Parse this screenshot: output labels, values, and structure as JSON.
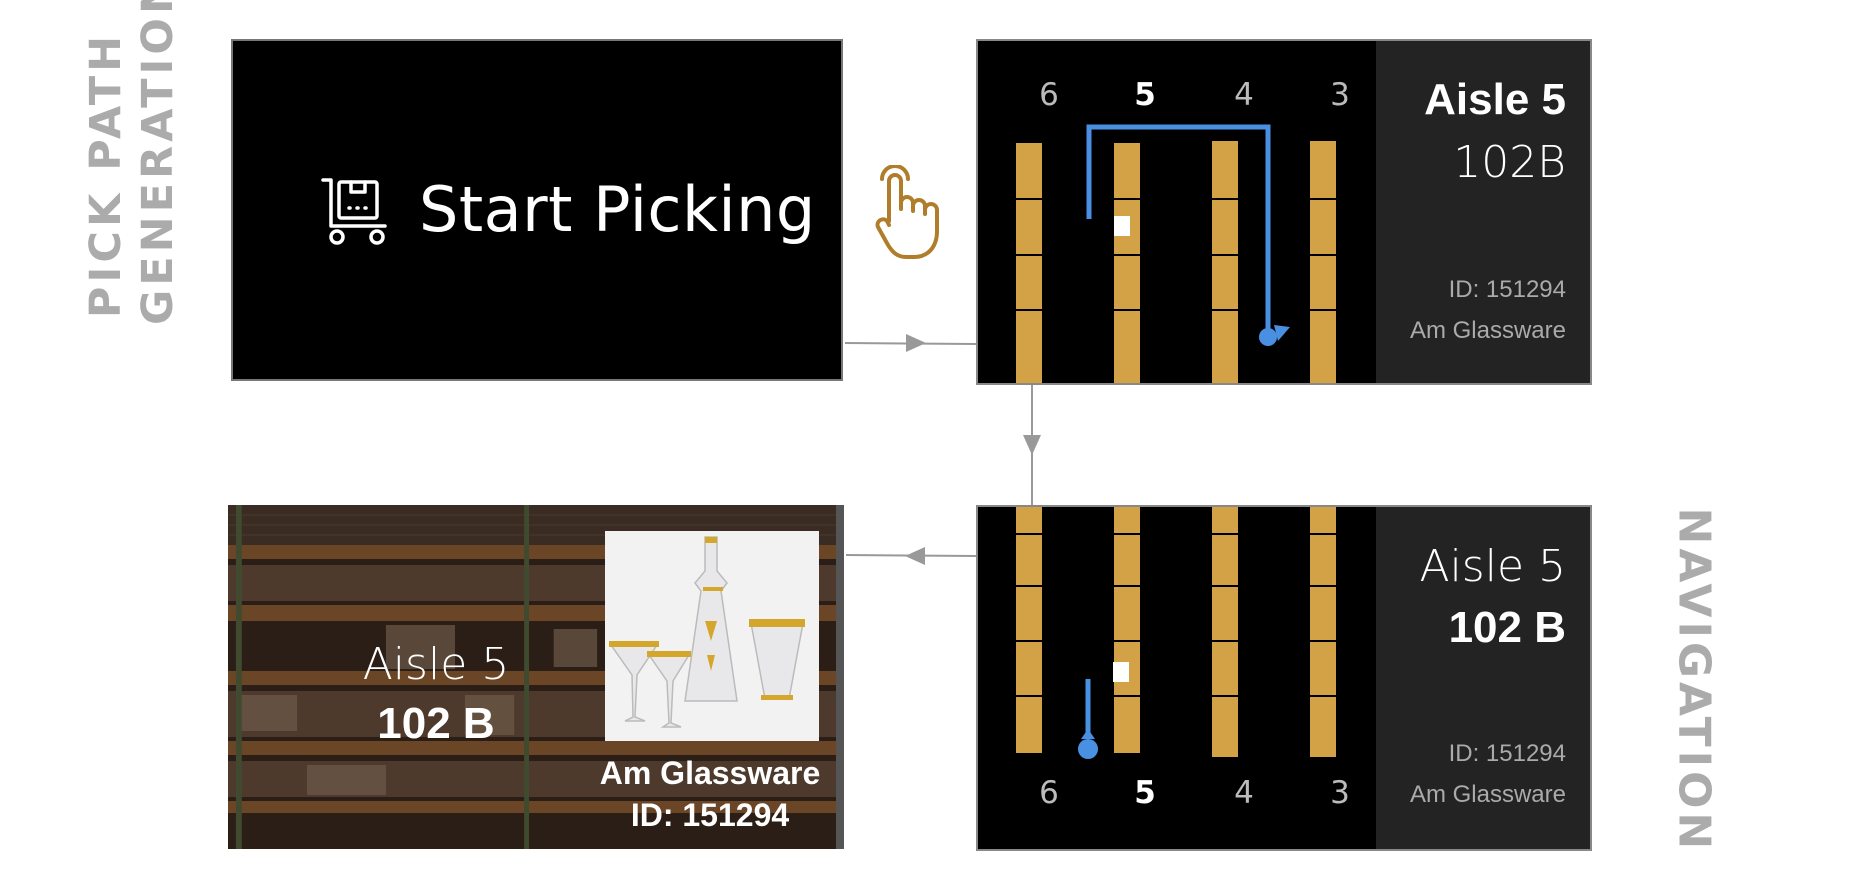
{
  "labels": {
    "left_side_line1": "PICK PATH",
    "left_side_line2": "GENERATION",
    "right_side": "NAVIGATION"
  },
  "start_screen": {
    "button_label": "Start Picking",
    "icon": "cart-icon"
  },
  "pointer": {
    "icon": "hand-pointer-icon",
    "color": "#b07d2a"
  },
  "path_screen": {
    "aisle_numbers": [
      "6",
      "5",
      "4",
      "3"
    ],
    "current_aisle_index": 1,
    "aisle_title": "Aisle 5",
    "bin": "102B",
    "item_id": "ID: 151294",
    "item_name": "Am Glassware"
  },
  "nav_screen": {
    "aisle_numbers": [
      "6",
      "5",
      "4",
      "3"
    ],
    "current_aisle_index": 1,
    "aisle_title": "Aisle 5",
    "bin": "102 B",
    "item_id": "ID: 151294",
    "item_name": "Am Glassware"
  },
  "photo_screen": {
    "aisle_title": "Aisle 5",
    "bin": "102 B",
    "item_name": "Am Glassware",
    "item_id": "ID: 151294"
  },
  "colors": {
    "shelf": "#d4a246",
    "path": "#4a90e2",
    "panel_bg": "#000000",
    "info_bg": "#232323",
    "connector": "#999999"
  }
}
